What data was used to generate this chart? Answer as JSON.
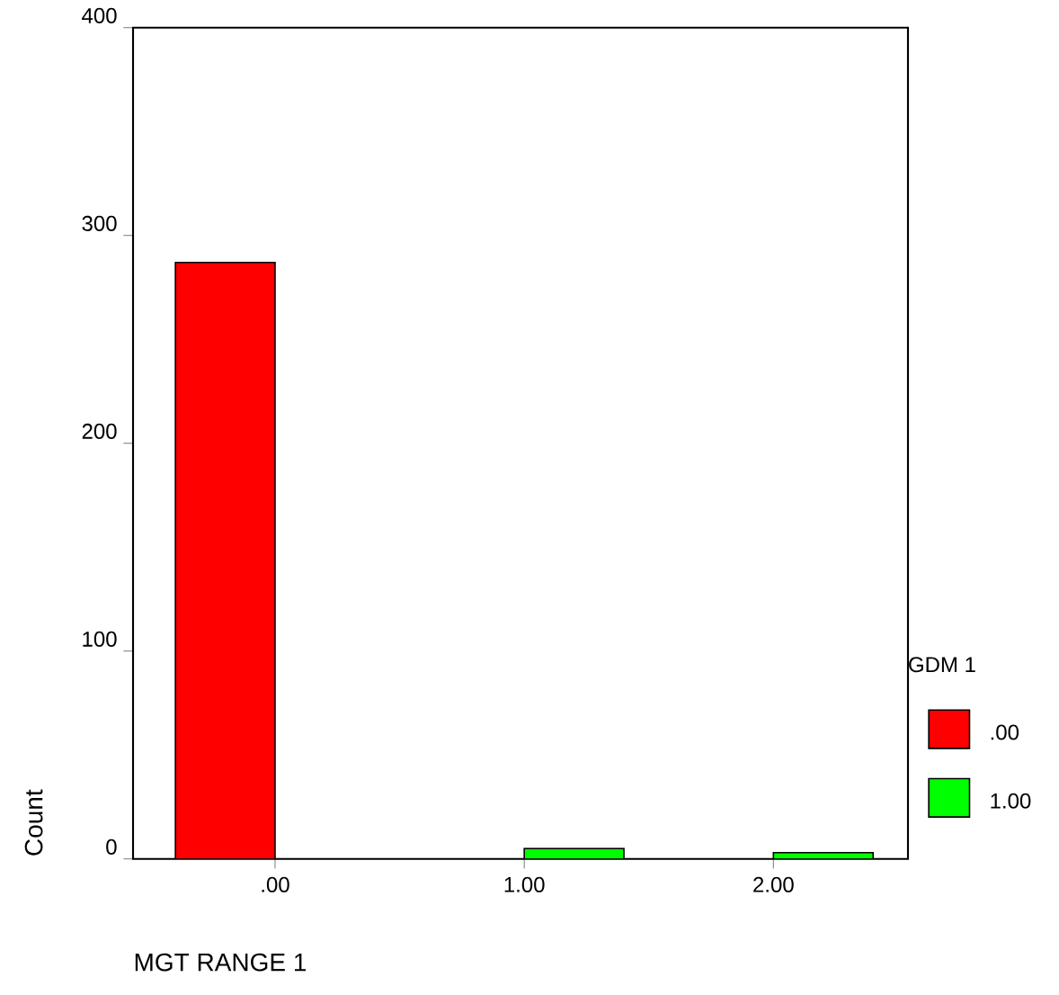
{
  "chart_data": {
    "type": "bar",
    "xlabel": "MGT RANGE 1",
    "ylabel": "Count",
    "legend_title": "GDM 1",
    "categories": [
      ".00",
      "1.00",
      "2.00"
    ],
    "series": [
      {
        "name": ".00",
        "color": "#ff0000",
        "values": [
          287,
          null,
          null
        ]
      },
      {
        "name": "1.00",
        "color": "#00ff00",
        "values": [
          null,
          5,
          3
        ]
      }
    ],
    "ylim": [
      0,
      400
    ],
    "yticks": [
      0,
      100,
      200,
      300,
      400
    ],
    "legend": "right",
    "grid": false
  }
}
